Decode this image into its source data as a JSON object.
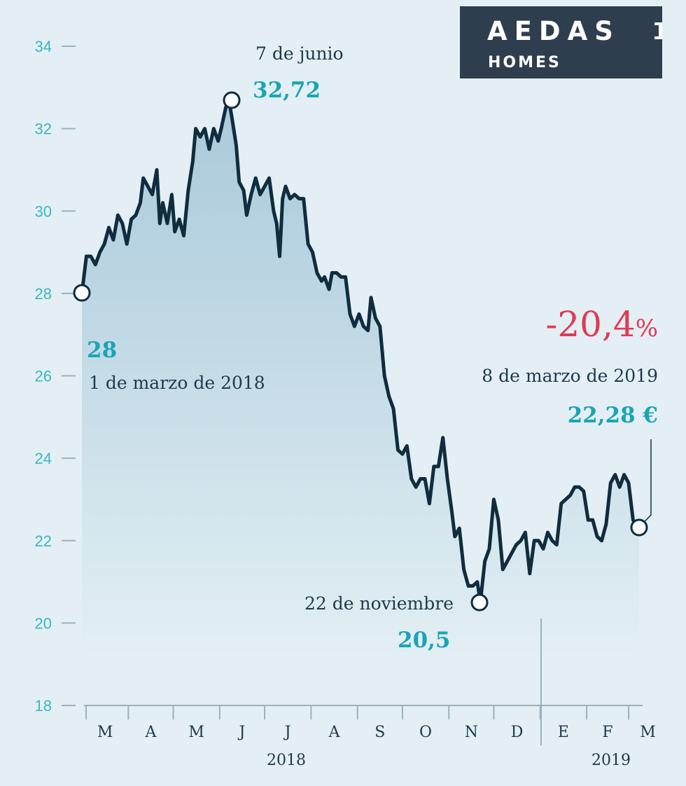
{
  "logo": {
    "name": "AEDAS",
    "sub": "HOMES"
  },
  "chart_data": {
    "type": "line",
    "ylim": [
      18,
      34
    ],
    "yticks": [
      "18",
      "20",
      "22",
      "24",
      "26",
      "28",
      "30",
      "32",
      "34"
    ],
    "months": [
      "M",
      "A",
      "M",
      "J",
      "J",
      "A",
      "S",
      "O",
      "N",
      "D",
      "E",
      "F",
      "M"
    ],
    "years": [
      "2018",
      "2019"
    ],
    "x_range": [
      "2018-03-01",
      "2019-03-08"
    ],
    "series": [
      {
        "values": [
          [
            "2018-03-01",
            28.0
          ],
          [
            "2018-03-04",
            28.9
          ],
          [
            "2018-03-07",
            28.9
          ],
          [
            "2018-03-10",
            28.7
          ],
          [
            "2018-03-13",
            29.0
          ],
          [
            "2018-03-16",
            29.2
          ],
          [
            "2018-03-19",
            29.6
          ],
          [
            "2018-03-22",
            29.3
          ],
          [
            "2018-03-25",
            29.9
          ],
          [
            "2018-03-28",
            29.7
          ],
          [
            "2018-03-31",
            29.2
          ],
          [
            "2018-04-03",
            29.8
          ],
          [
            "2018-04-06",
            29.9
          ],
          [
            "2018-04-09",
            30.2
          ],
          [
            "2018-04-11",
            30.8
          ],
          [
            "2018-04-14",
            30.6
          ],
          [
            "2018-04-17",
            30.4
          ],
          [
            "2018-04-20",
            31.0
          ],
          [
            "2018-04-22",
            29.7
          ],
          [
            "2018-04-24",
            30.2
          ],
          [
            "2018-04-27",
            29.7
          ],
          [
            "2018-04-30",
            30.4
          ],
          [
            "2018-05-02",
            29.5
          ],
          [
            "2018-05-05",
            29.8
          ],
          [
            "2018-05-08",
            29.4
          ],
          [
            "2018-05-11",
            30.5
          ],
          [
            "2018-05-14",
            31.2
          ],
          [
            "2018-05-16",
            32.0
          ],
          [
            "2018-05-19",
            31.8
          ],
          [
            "2018-05-22",
            32.0
          ],
          [
            "2018-05-25",
            31.5
          ],
          [
            "2018-05-28",
            32.0
          ],
          [
            "2018-05-31",
            31.7
          ],
          [
            "2018-06-02",
            32.0
          ],
          [
            "2018-06-05",
            32.5
          ],
          [
            "2018-06-07",
            32.72
          ],
          [
            "2018-06-09",
            32.3
          ],
          [
            "2018-06-12",
            31.6
          ],
          [
            "2018-06-14",
            30.7
          ],
          [
            "2018-06-17",
            30.5
          ],
          [
            "2018-06-19",
            29.9
          ],
          [
            "2018-06-22",
            30.4
          ],
          [
            "2018-06-25",
            30.8
          ],
          [
            "2018-06-28",
            30.4
          ],
          [
            "2018-07-01",
            30.6
          ],
          [
            "2018-07-04",
            30.8
          ],
          [
            "2018-07-07",
            30.0
          ],
          [
            "2018-07-09",
            29.7
          ],
          [
            "2018-07-11",
            28.9
          ],
          [
            "2018-07-13",
            30.3
          ],
          [
            "2018-07-15",
            30.6
          ],
          [
            "2018-07-18",
            30.3
          ],
          [
            "2018-07-21",
            30.4
          ],
          [
            "2018-07-24",
            30.3
          ],
          [
            "2018-07-27",
            30.3
          ],
          [
            "2018-07-30",
            29.2
          ],
          [
            "2018-08-02",
            29.0
          ],
          [
            "2018-08-05",
            28.5
          ],
          [
            "2018-08-08",
            28.3
          ],
          [
            "2018-08-10",
            28.4
          ],
          [
            "2018-08-13",
            28.1
          ],
          [
            "2018-08-15",
            28.5
          ],
          [
            "2018-08-18",
            28.5
          ],
          [
            "2018-08-21",
            28.4
          ],
          [
            "2018-08-24",
            28.4
          ],
          [
            "2018-08-27",
            27.5
          ],
          [
            "2018-08-30",
            27.2
          ],
          [
            "2018-09-02",
            27.5
          ],
          [
            "2018-09-05",
            27.2
          ],
          [
            "2018-09-08",
            27.1
          ],
          [
            "2018-09-10",
            27.9
          ],
          [
            "2018-09-13",
            27.4
          ],
          [
            "2018-09-16",
            27.2
          ],
          [
            "2018-09-19",
            26.0
          ],
          [
            "2018-09-22",
            25.5
          ],
          [
            "2018-09-25",
            25.2
          ],
          [
            "2018-09-28",
            24.2
          ],
          [
            "2018-10-01",
            24.1
          ],
          [
            "2018-10-04",
            24.3
          ],
          [
            "2018-10-07",
            23.5
          ],
          [
            "2018-10-10",
            23.3
          ],
          [
            "2018-10-13",
            23.5
          ],
          [
            "2018-10-16",
            23.5
          ],
          [
            "2018-10-19",
            22.9
          ],
          [
            "2018-10-22",
            23.8
          ],
          [
            "2018-10-25",
            23.8
          ],
          [
            "2018-10-28",
            24.5
          ],
          [
            "2018-10-31",
            23.5
          ],
          [
            "2018-11-03",
            22.7
          ],
          [
            "2018-11-05",
            22.1
          ],
          [
            "2018-11-08",
            22.3
          ],
          [
            "2018-11-11",
            21.3
          ],
          [
            "2018-11-14",
            20.9
          ],
          [
            "2018-11-17",
            20.9
          ],
          [
            "2018-11-20",
            21.0
          ],
          [
            "2018-11-22",
            20.5
          ],
          [
            "2018-11-25",
            21.5
          ],
          [
            "2018-11-28",
            21.8
          ],
          [
            "2018-12-01",
            23.0
          ],
          [
            "2018-12-04",
            22.5
          ],
          [
            "2018-12-07",
            21.3
          ],
          [
            "2018-12-10",
            21.5
          ],
          [
            "2018-12-13",
            21.7
          ],
          [
            "2018-12-16",
            21.9
          ],
          [
            "2018-12-19",
            22.0
          ],
          [
            "2018-12-22",
            22.2
          ],
          [
            "2018-12-25",
            21.2
          ],
          [
            "2018-12-28",
            22.0
          ],
          [
            "2018-12-31",
            22.0
          ],
          [
            "2019-01-03",
            21.8
          ],
          [
            "2019-01-06",
            22.2
          ],
          [
            "2019-01-09",
            22.0
          ],
          [
            "2019-01-12",
            21.9
          ],
          [
            "2019-01-15",
            22.9
          ],
          [
            "2019-01-18",
            23.0
          ],
          [
            "2019-01-21",
            23.1
          ],
          [
            "2019-01-24",
            23.3
          ],
          [
            "2019-01-27",
            23.3
          ],
          [
            "2019-01-30",
            23.2
          ],
          [
            "2019-02-02",
            22.5
          ],
          [
            "2019-02-05",
            22.5
          ],
          [
            "2019-02-08",
            22.1
          ],
          [
            "2019-02-11",
            22.0
          ],
          [
            "2019-02-14",
            22.4
          ],
          [
            "2019-02-17",
            23.4
          ],
          [
            "2019-02-20",
            23.6
          ],
          [
            "2019-02-23",
            23.3
          ],
          [
            "2019-02-26",
            23.6
          ],
          [
            "2019-03-01",
            23.4
          ],
          [
            "2019-03-04",
            22.5
          ],
          [
            "2019-03-08",
            22.28
          ]
        ]
      }
    ],
    "annotations": [
      {
        "label": "1 de marzo de 2018",
        "value": "28"
      },
      {
        "label": "7 de junio",
        "value": "32,72"
      },
      {
        "label": "22 de noviembre",
        "value": "20,5"
      },
      {
        "label": "8 de marzo de 2019",
        "value": "22,28 €",
        "change": "-20,4",
        "change_unit": "%"
      }
    ]
  }
}
